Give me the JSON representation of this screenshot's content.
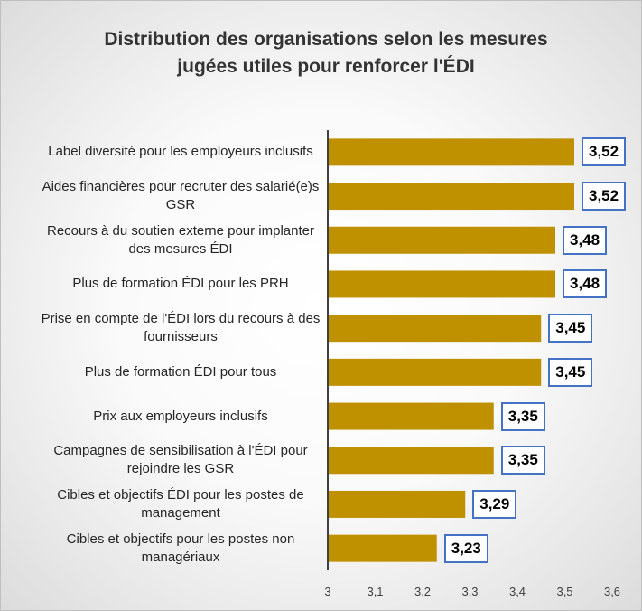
{
  "chart_data": {
    "type": "bar",
    "orientation": "horizontal",
    "title": "Distribution des organisations selon les mesures jugées utiles pour renforcer l'ÉDI",
    "categories": [
      "Label diversité pour les employeurs inclusifs",
      "Aides financières pour recruter des salarié(e)s GSR",
      "Recours à du soutien externe pour implanter des mesures ÉDI",
      "Plus de formation ÉDI pour les PRH",
      "Prise en compte de l'ÉDI lors du recours à des fournisseurs",
      "Plus de formation ÉDI pour tous",
      "Prix aux employeurs inclusifs",
      "Campagnes de sensibilisation à l'ÉDI pour rejoindre les GSR",
      "Cibles et objectifs ÉDI pour les postes de management",
      "Cibles et objectifs pour les postes non managériaux"
    ],
    "values": [
      3.52,
      3.52,
      3.48,
      3.48,
      3.45,
      3.45,
      3.35,
      3.35,
      3.29,
      3.23
    ],
    "value_labels": [
      "3,52",
      "3,52",
      "3,48",
      "3,48",
      "3,45",
      "3,45",
      "3,35",
      "3,35",
      "3,29",
      "3,23"
    ],
    "color": "#bf9000",
    "xlim": [
      3,
      3.6
    ],
    "xticks": [
      3,
      {
        "value": 3.1,
        "label": "3,1"
      },
      {
        "value": 3.2,
        "label": "3,2"
      },
      {
        "value": 3.3,
        "label": "3,3"
      },
      {
        "value": 3.4,
        "label": "3,4"
      },
      {
        "value": 3.5,
        "label": "3,5"
      },
      {
        "value": 3.6,
        "label": "3,6"
      }
    ],
    "grid": false
  }
}
